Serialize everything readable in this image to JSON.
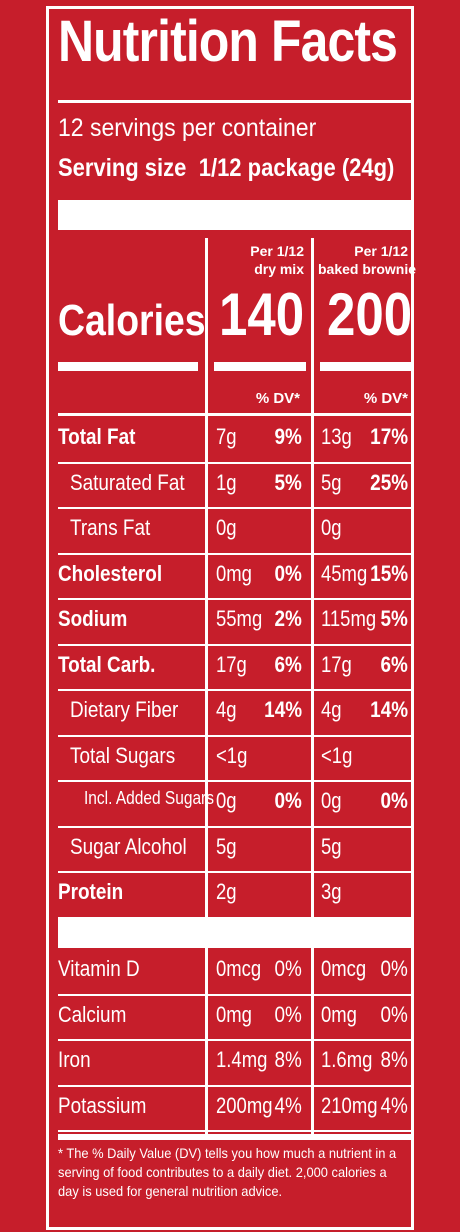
{
  "title": "Nutrition Facts",
  "servings_per_container": "12 servings per container",
  "serving_size_label": "Serving size",
  "serving_size_value": "1/12 package (24g)",
  "columns": {
    "col1_line1": "Per 1/12",
    "col1_line2": "dry mix",
    "col2_line1": "Per 1/12",
    "col2_line2": "baked brownie"
  },
  "calories": {
    "label": "Calories",
    "col1": "140",
    "col2": "200"
  },
  "dv_header": {
    "col1": "% DV*",
    "col2": "% DV*"
  },
  "nutrients": [
    {
      "name": "Total Fat",
      "a1": "7g",
      "p1": "9%",
      "a2": "13g",
      "p2": "17%"
    },
    {
      "name": "Saturated Fat",
      "a1": "1g",
      "p1": "5%",
      "a2": "5g",
      "p2": "25%"
    },
    {
      "name": "Trans Fat",
      "a1": "0g",
      "p1": "",
      "a2": "0g",
      "p2": ""
    },
    {
      "name": "Cholesterol",
      "a1": "0mg",
      "p1": "0%",
      "a2": "45mg",
      "p2": "15%"
    },
    {
      "name": "Sodium",
      "a1": "55mg",
      "p1": "2%",
      "a2": "115mg",
      "p2": "5%"
    },
    {
      "name": "Total Carb.",
      "a1": "17g",
      "p1": "6%",
      "a2": "17g",
      "p2": "6%"
    },
    {
      "name": "Dietary Fiber",
      "a1": "4g",
      "p1": "14%",
      "a2": "4g",
      "p2": "14%"
    },
    {
      "name": "Total Sugars",
      "a1": "<1g",
      "p1": "",
      "a2": "<1g",
      "p2": ""
    },
    {
      "name": "Incl. Added Sugars",
      "a1": "0g",
      "p1": "0%",
      "a2": "0g",
      "p2": "0%"
    },
    {
      "name": "Sugar Alcohol",
      "a1": "5g",
      "p1": "",
      "a2": "5g",
      "p2": ""
    },
    {
      "name": "Protein",
      "a1": "2g",
      "p1": "",
      "a2": "3g",
      "p2": ""
    }
  ],
  "vitamins": [
    {
      "name": "Vitamin D",
      "a1": "0mcg",
      "p1": "0%",
      "a2": "0mcg",
      "p2": "0%"
    },
    {
      "name": "Calcium",
      "a1": "0mg",
      "p1": "0%",
      "a2": "0mg",
      "p2": "0%"
    },
    {
      "name": "Iron",
      "a1": "1.4mg",
      "p1": "8%",
      "a2": "1.6mg",
      "p2": "8%"
    },
    {
      "name": "Potassium",
      "a1": "200mg",
      "p1": "4%",
      "a2": "210mg",
      "p2": "4%"
    }
  ],
  "footnote": "* The % Daily Value (DV) tells you how much a nutrient in a serving of food contributes to a daily diet. 2,000 calories a day is used for general nutrition advice.",
  "colors": {
    "background": "#c61e2b",
    "foreground": "#ffffff"
  }
}
